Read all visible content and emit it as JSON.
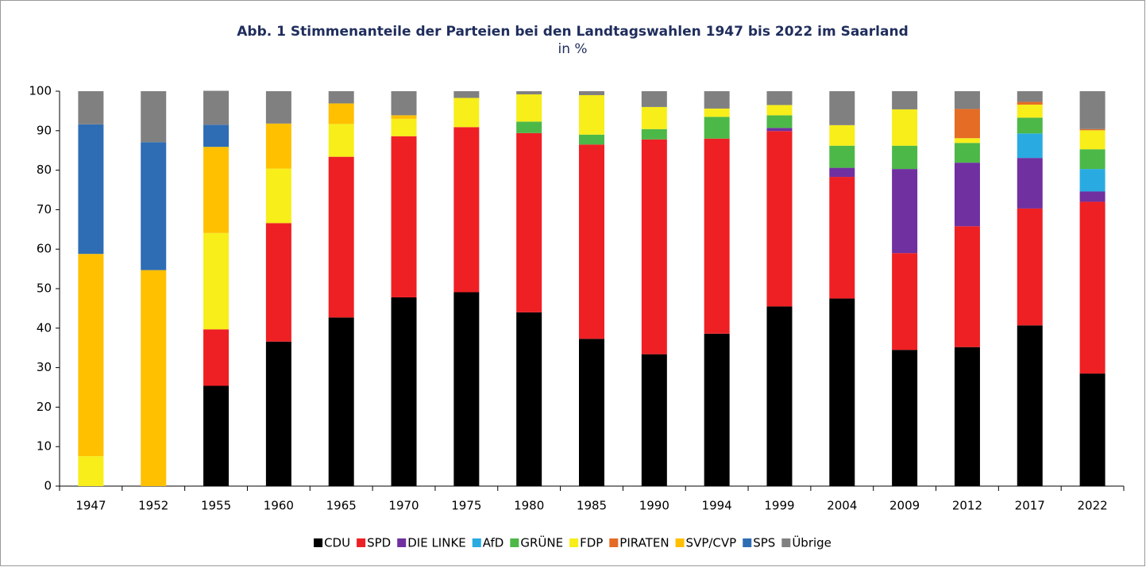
{
  "chart_data": {
    "type": "stacked_bar",
    "title": "Abb. 1 Stimmenanteile der Parteien bei den Landtagswahlen 1947 bis 2022 im Saarland",
    "subtitle": "in %",
    "categories": [
      "1947",
      "1952",
      "1955",
      "1960",
      "1965",
      "1970",
      "1975",
      "1980",
      "1985",
      "1990",
      "1994",
      "1999",
      "2004",
      "2009",
      "2012",
      "2017",
      "2022"
    ],
    "series": [
      {
        "name": "CDU",
        "color": "#000000",
        "values": [
          0,
          0,
          25.4,
          36.6,
          42.7,
          47.8,
          49.1,
          44.0,
          37.3,
          33.4,
          38.6,
          45.5,
          47.5,
          34.5,
          35.2,
          40.7,
          28.5
        ]
      },
      {
        "name": "SPD",
        "color": "#ee2024",
        "values": [
          0,
          0,
          14.3,
          30.0,
          40.7,
          40.8,
          41.8,
          45.4,
          49.2,
          54.4,
          49.4,
          44.4,
          30.8,
          24.5,
          30.6,
          29.6,
          43.5
        ]
      },
      {
        "name": "DIE LINKE",
        "color": "#7030a0",
        "values": [
          0,
          0,
          0,
          0,
          0,
          0,
          0,
          0,
          0,
          0,
          0,
          0.8,
          2.3,
          21.3,
          16.1,
          12.8,
          2.6
        ]
      },
      {
        "name": "AfD",
        "color": "#29abe2",
        "values": [
          0,
          0,
          0,
          0,
          0,
          0,
          0,
          0,
          0,
          0,
          0,
          0,
          0,
          0,
          0,
          6.2,
          5.7
        ]
      },
      {
        "name": "GRÜNE",
        "color": "#4cb848",
        "values": [
          0,
          0,
          0,
          0,
          0,
          0,
          0,
          2.9,
          2.5,
          2.6,
          5.5,
          3.2,
          5.6,
          5.9,
          5.0,
          4.0,
          5.0
        ]
      },
      {
        "name": "FDP",
        "color": "#f7ee1a",
        "values": [
          7.6,
          0,
          24.4,
          13.8,
          8.3,
          4.4,
          7.4,
          6.9,
          10.0,
          5.6,
          2.1,
          2.6,
          5.2,
          9.2,
          1.2,
          3.3,
          4.8
        ]
      },
      {
        "name": "PIRATEN",
        "color": "#e46c25",
        "values": [
          0,
          0,
          0,
          0,
          0,
          0,
          0,
          0,
          0,
          0,
          0,
          0,
          0,
          0,
          7.4,
          0.7,
          0.3
        ]
      },
      {
        "name": "SVP/CVP",
        "color": "#ffc000",
        "values": [
          51.2,
          54.7,
          21.8,
          11.4,
          5.2,
          0.9,
          0,
          0,
          0,
          0,
          0,
          0,
          0,
          0,
          0,
          0,
          0
        ]
      },
      {
        "name": "SPS",
        "color": "#2e6db4",
        "values": [
          32.8,
          32.4,
          5.6,
          0,
          0,
          0,
          0,
          0,
          0,
          0,
          0,
          0,
          0,
          0,
          0,
          0,
          0
        ]
      },
      {
        "name": "Übrige",
        "color": "#808080",
        "values": [
          8.4,
          12.9,
          8.6,
          8.2,
          3.1,
          6.1,
          1.7,
          0.8,
          1.0,
          4.0,
          4.4,
          3.5,
          8.6,
          4.6,
          4.5,
          2.7,
          9.6
        ]
      }
    ],
    "ylim": [
      0,
      100
    ],
    "yticks": [
      0,
      10,
      20,
      30,
      40,
      50,
      60,
      70,
      80,
      90,
      100
    ],
    "legend": "bottom"
  }
}
